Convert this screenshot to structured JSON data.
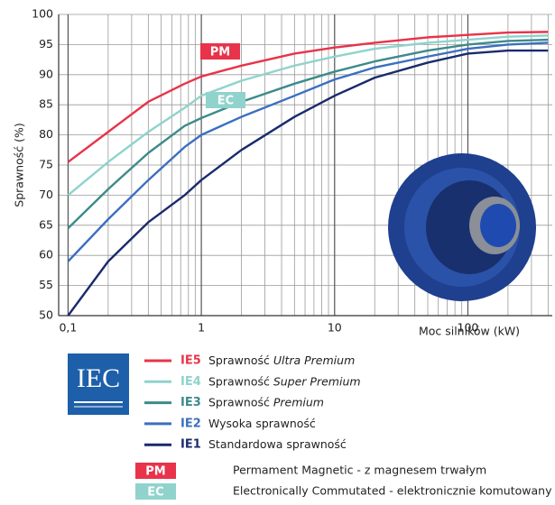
{
  "chart_data": {
    "type": "line",
    "x_label": "Moc silników (kW)",
    "y_label": "Sprawność  (%)",
    "log_x": true,
    "grid": true,
    "xlim": [
      0.085,
      430
    ],
    "ylim": [
      50,
      100
    ],
    "xticks": [
      {
        "value": 0.1,
        "label": "0,1"
      },
      1,
      10,
      100
    ],
    "xticks_minor": [
      0.2,
      0.3,
      0.4,
      0.5,
      0.6,
      0.7,
      0.8,
      0.9,
      2,
      3,
      4,
      5,
      6,
      7,
      8,
      9,
      20,
      30,
      40,
      50,
      60,
      70,
      80,
      90,
      200,
      300,
      400
    ],
    "yticks": [
      50,
      55,
      60,
      65,
      70,
      75,
      80,
      85,
      90,
      95,
      100
    ],
    "x": [
      0.1,
      0.2,
      0.4,
      0.75,
      1,
      2,
      5,
      10,
      20,
      50,
      100,
      200,
      400
    ],
    "series": [
      {
        "name": "IE5",
        "desc": "Sprawność",
        "desc_italic": "Ultra Premium",
        "color": "#e8334a",
        "values": [
          75.5,
          80.5,
          85.5,
          88.5,
          89.7,
          91.5,
          93.5,
          94.5,
          95.3,
          96.2,
          96.6,
          97,
          97.1
        ]
      },
      {
        "name": "IE4",
        "desc": "Sprawność",
        "desc_italic": "Super Premium",
        "color": "#8fd3cc",
        "values": [
          70,
          75.5,
          80.5,
          84.5,
          86.5,
          89,
          91.5,
          93,
          94.3,
          95.3,
          95.8,
          96.3,
          96.5
        ]
      },
      {
        "name": "IE3",
        "desc": "Sprawność",
        "desc_italic": "Premium",
        "color": "#3d8a8c",
        "values": [
          64.5,
          71,
          77,
          81.5,
          82.8,
          85.5,
          88.5,
          90.5,
          92.2,
          94,
          95,
          95.6,
          95.8
        ]
      },
      {
        "name": "IE2",
        "desc": "Wysoka sprawność",
        "color": "#3a6fbf",
        "values": [
          59,
          66,
          72.5,
          78,
          80,
          83,
          86.5,
          89.2,
          91.2,
          93,
          94.3,
          95,
          95.3
        ]
      },
      {
        "name": "IE1",
        "desc": "Standardowa sprawność",
        "color": "#1a2a6c",
        "values": [
          50,
          59,
          65.5,
          70,
          72.5,
          77.5,
          83,
          86.5,
          89.5,
          92,
          93.5,
          94,
          94
        ]
      }
    ],
    "annotations": [
      {
        "label": "PM",
        "text": "Permament Magnetic - z magnesem trwałym",
        "color": "#e8334a"
      },
      {
        "label": "EC",
        "text": "Electronically Commutated - elektronicznie komutowany",
        "color": "#8fd3cc"
      }
    ],
    "logo_text": "IEC"
  }
}
